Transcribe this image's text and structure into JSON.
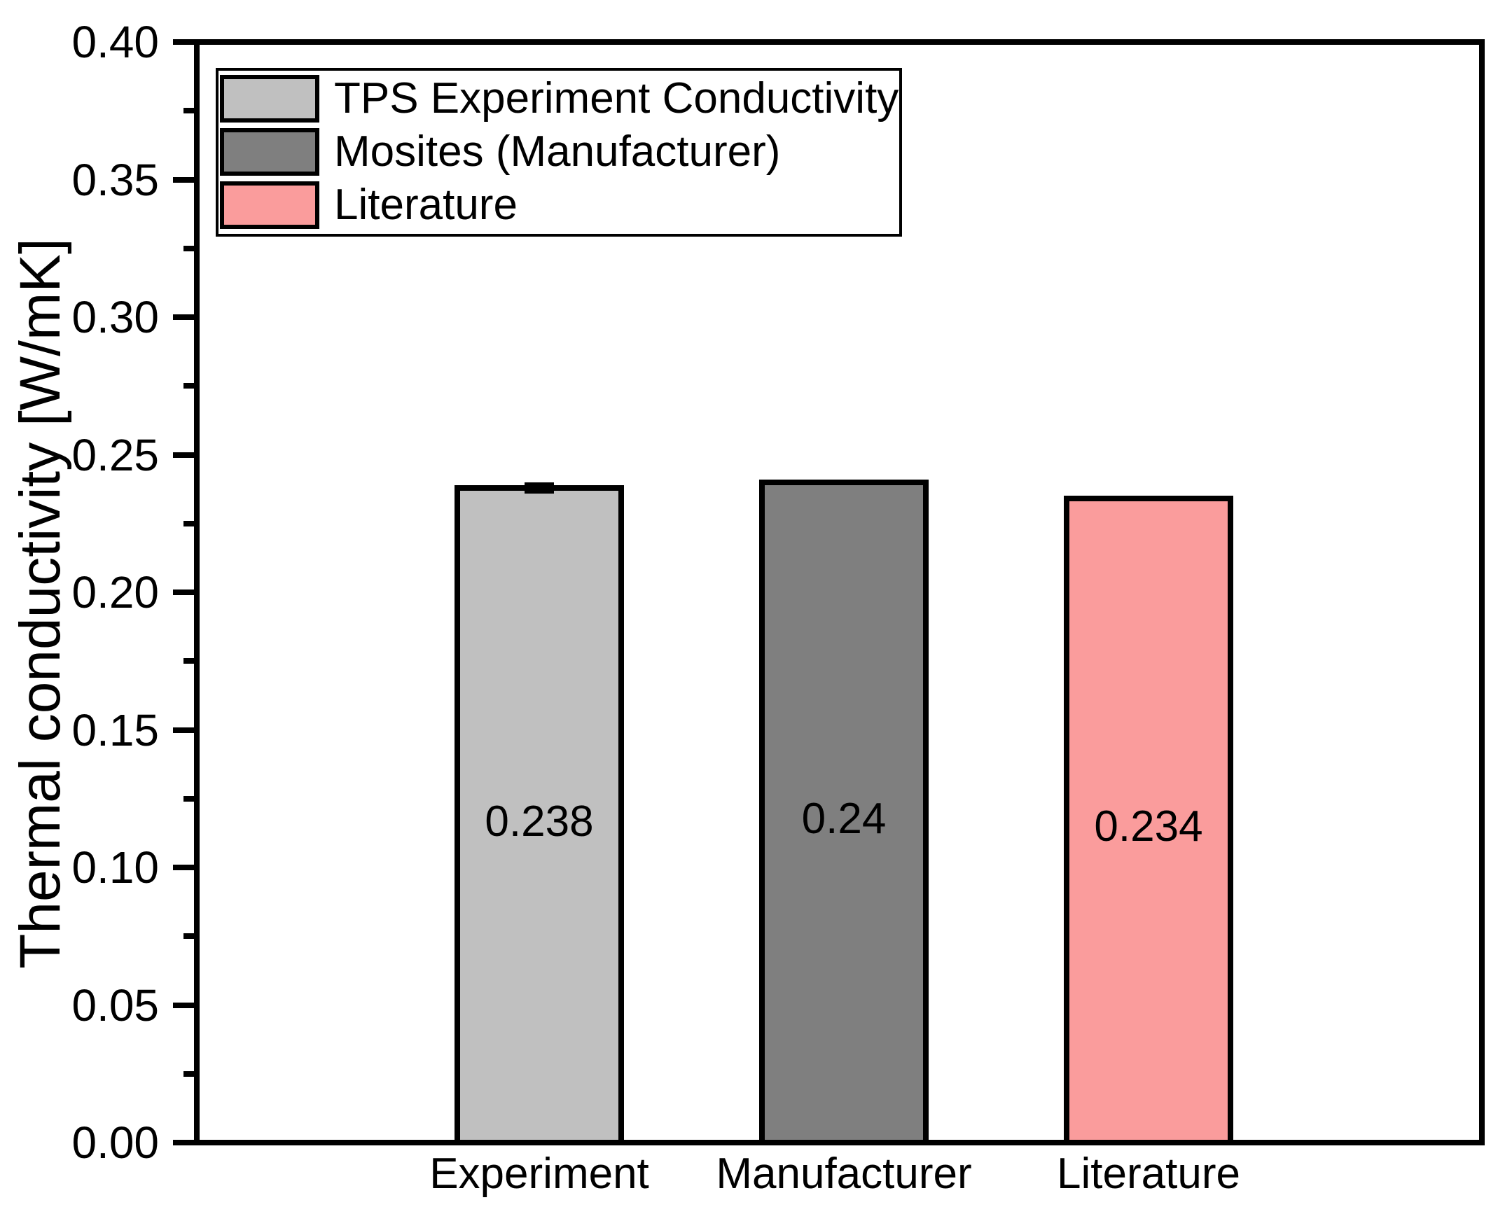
{
  "chart_data": {
    "type": "bar",
    "title": "",
    "xlabel": "",
    "ylabel": "Thermal conductivity [W/mK]",
    "categories": [
      "Experiment",
      "Manufacturer",
      "Literature"
    ],
    "values": [
      0.238,
      0.24,
      0.234
    ],
    "value_labels": [
      "0.238",
      "0.24",
      "0.234"
    ],
    "bar_colors": [
      "#C0C0C0",
      "#7F7F7F",
      "#FA9C9C"
    ],
    "errors": [
      0.002,
      null,
      null
    ],
    "ylim": [
      0.0,
      0.4
    ],
    "ytick_step": 0.05,
    "yminor_step": 0.025,
    "ytick_labels": [
      "0.00",
      "0.05",
      "0.10",
      "0.15",
      "0.20",
      "0.25",
      "0.30",
      "0.35",
      "0.40"
    ],
    "grid": false,
    "frame": "full-box",
    "tick_direction": "out",
    "legend": {
      "position": "top-left",
      "entries": [
        {
          "label": "TPS Experiment Conductivity",
          "color": "#C0C0C0"
        },
        {
          "label": "Mosites (Manufacturer)",
          "color": "#7F7F7F"
        },
        {
          "label": "Literature",
          "color": "#FA9C9C"
        }
      ]
    },
    "colors": {
      "axis": "#000000",
      "text": "#000000",
      "background": "#ffffff"
    }
  }
}
